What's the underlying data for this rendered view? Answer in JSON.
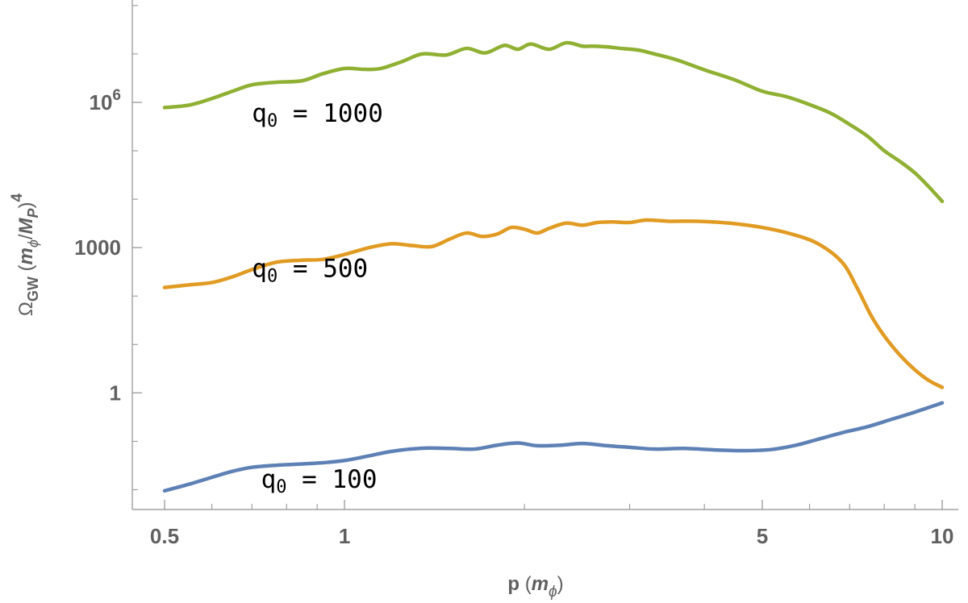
{
  "chart_data": {
    "type": "line",
    "x_scale": "log",
    "y_scale": "log",
    "xlim": [
      0.5,
      10
    ],
    "ylim": [
      0.0039,
      130000000.0
    ],
    "grid": false,
    "xlabel": {
      "base": "p",
      "mid": " (",
      "var": "m",
      "sub": "ϕ",
      "end": ")"
    },
    "ylabel": {
      "omega": "Ω",
      "omega_sub": "GW",
      "open": " (",
      "m": "m",
      "m_sub": "ϕ",
      "slash": "/",
      "M": "M",
      "M_sub": "P",
      "close": ")",
      "pow": "4"
    },
    "x_ticks": [
      {
        "label": "0.5",
        "value": 0.5
      },
      {
        "label": "1",
        "value": 1
      },
      {
        "label": "5",
        "value": 5
      },
      {
        "label": "10",
        "value": 10
      }
    ],
    "x_minor_ticks": [
      0.6,
      0.7,
      0.8,
      0.9,
      2,
      3,
      4,
      6,
      7,
      8,
      9
    ],
    "y_ticks": [
      {
        "value": 1,
        "label": "1",
        "sup": ""
      },
      {
        "value": 1000,
        "label": "1000",
        "sup": ""
      },
      {
        "value": 1000000,
        "label": "10",
        "sup": "6"
      }
    ],
    "y_minor_ticks": [
      0.001,
      0.01,
      0.1,
      10,
      100,
      10000,
      100000,
      10000000,
      100000000
    ],
    "series": [
      {
        "label": {
          "name": "q",
          "sub": "0",
          "rest": " = 1000"
        },
        "label_at": [
          0.7,
          400000
        ],
        "color": "#8fb032",
        "x": [
          0.5,
          0.55,
          0.6,
          0.65,
          0.7,
          0.77,
          0.85,
          0.92,
          1.0,
          1.08,
          1.15,
          1.25,
          1.35,
          1.48,
          1.6,
          1.72,
          1.85,
          1.95,
          2.05,
          2.2,
          2.35,
          2.5,
          2.6,
          2.75,
          2.9,
          3.1,
          3.3,
          3.6,
          4.0,
          4.5,
          5.0,
          5.5,
          6.0,
          6.5,
          7.0,
          7.5,
          8.0,
          8.5,
          9.0,
          9.5,
          10.0
        ],
        "y": [
          780000,
          880000,
          1200000,
          1700000,
          2300000,
          2600000,
          2800000,
          3900000,
          5000000,
          4800000,
          5000000,
          7000000,
          10000000,
          9500000,
          13000000,
          10500000,
          15000000,
          12500000,
          16000000,
          12500000,
          17000000,
          14500000,
          14500000,
          14000000,
          13000000,
          12000000,
          10000000,
          7500000,
          4700000,
          2900000,
          1700000,
          1300000,
          900000,
          600000,
          350000,
          200000,
          100000,
          60000,
          35000,
          18000,
          9000
        ]
      },
      {
        "label": {
          "name": "q",
          "sub": "0",
          "rest": " = 500"
        },
        "label_at": [
          0.7,
          250
        ],
        "color": "#e19b23",
        "x": [
          0.5,
          0.55,
          0.6,
          0.65,
          0.7,
          0.77,
          0.85,
          0.92,
          1.0,
          1.1,
          1.2,
          1.3,
          1.4,
          1.5,
          1.6,
          1.7,
          1.8,
          1.9,
          2.0,
          2.1,
          2.2,
          2.35,
          2.5,
          2.65,
          2.8,
          3.0,
          3.2,
          3.5,
          3.9,
          4.4,
          5.0,
          5.6,
          6.2,
          6.8,
          7.2,
          7.6,
          8.0,
          8.5,
          9.0,
          9.5,
          10.0
        ],
        "y": [
          150,
          170,
          190,
          250,
          350,
          500,
          550,
          570,
          720,
          1000,
          1200,
          1100,
          1050,
          1500,
          2000,
          1700,
          1900,
          2600,
          2400,
          2000,
          2500,
          3200,
          2900,
          3300,
          3400,
          3300,
          3700,
          3500,
          3500,
          3200,
          2600,
          1900,
          1200,
          500,
          150,
          40,
          15,
          6,
          3,
          1.8,
          1.3
        ]
      },
      {
        "label": {
          "name": "q",
          "sub": "0",
          "rest": " = 100"
        },
        "label_at": [
          0.725,
          0.011
        ],
        "color": "#5e81b5",
        "x": [
          0.5,
          0.55,
          0.6,
          0.65,
          0.7,
          0.77,
          0.85,
          0.92,
          1.0,
          1.1,
          1.2,
          1.35,
          1.5,
          1.65,
          1.8,
          1.95,
          2.1,
          2.3,
          2.5,
          2.75,
          3.0,
          3.3,
          3.7,
          4.2,
          4.7,
          5.2,
          5.7,
          6.2,
          6.8,
          7.5,
          8.2,
          9.0,
          10.0
        ],
        "y": [
          0.0095,
          0.013,
          0.018,
          0.024,
          0.029,
          0.032,
          0.034,
          0.036,
          0.04,
          0.05,
          0.062,
          0.072,
          0.071,
          0.069,
          0.083,
          0.092,
          0.081,
          0.083,
          0.09,
          0.081,
          0.075,
          0.069,
          0.071,
          0.066,
          0.064,
          0.068,
          0.083,
          0.11,
          0.15,
          0.2,
          0.28,
          0.4,
          0.62
        ]
      }
    ]
  }
}
